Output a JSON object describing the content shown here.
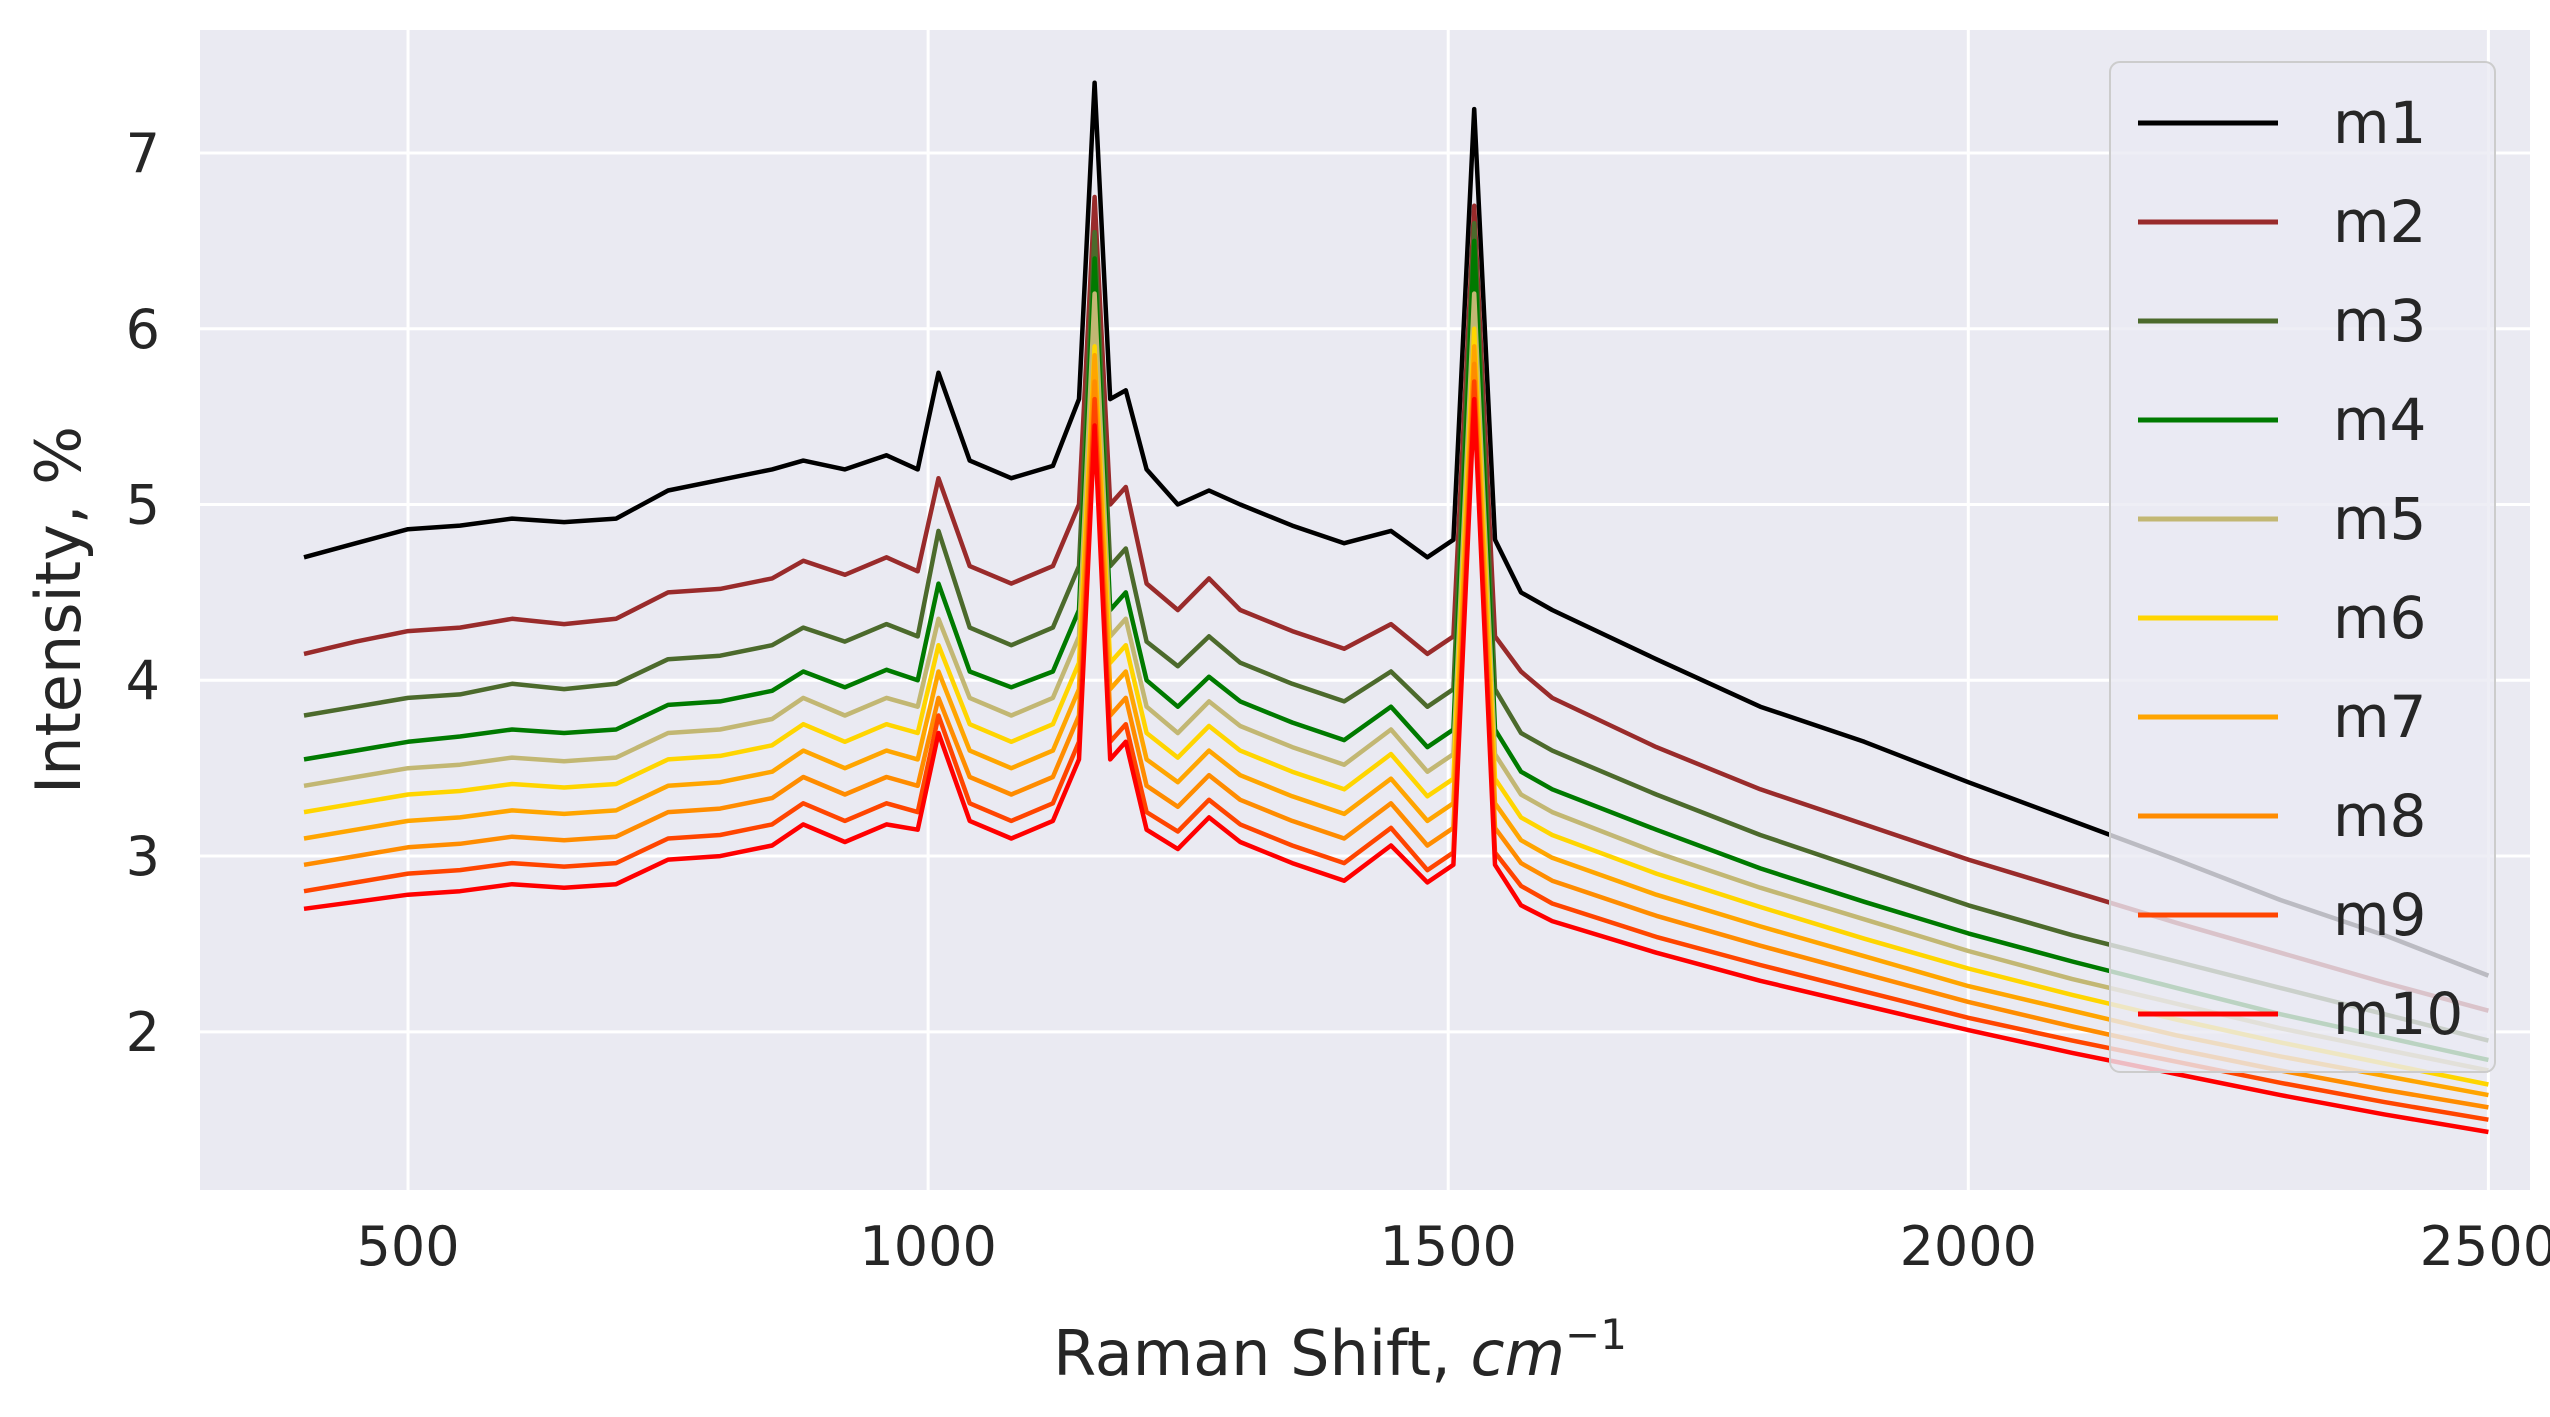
{
  "chart_data": {
    "type": "line",
    "xlabel": "Raman Shift, ",
    "xlabel_math": {
      "base": "cm",
      "exp": "−1"
    },
    "ylabel": "Intensity, %",
    "xlim": [
      300,
      2540
    ],
    "ylim": [
      1.1,
      7.7
    ],
    "x_ticks": [
      {
        "value": 500,
        "label": "500"
      },
      {
        "value": 1000,
        "label": "1000"
      },
      {
        "value": 1500,
        "label": "1500"
      },
      {
        "value": 2000,
        "label": "2000"
      },
      {
        "value": 2500,
        "label": "2500"
      }
    ],
    "y_ticks": [
      {
        "value": 2,
        "label": "2"
      },
      {
        "value": 3,
        "label": "3"
      },
      {
        "value": 4,
        "label": "4"
      },
      {
        "value": 5,
        "label": "5"
      },
      {
        "value": 6,
        "label": "6"
      },
      {
        "value": 7,
        "label": "7"
      }
    ],
    "grid": true,
    "legend_position": "top-right",
    "x": [
      400,
      450,
      500,
      550,
      600,
      650,
      700,
      750,
      800,
      850,
      880,
      920,
      960,
      990,
      1010,
      1040,
      1080,
      1120,
      1145,
      1160,
      1175,
      1190,
      1210,
      1240,
      1270,
      1300,
      1350,
      1400,
      1445,
      1480,
      1505,
      1525,
      1545,
      1570,
      1600,
      1700,
      1800,
      1900,
      2000,
      2100,
      2200,
      2300,
      2400,
      2500
    ],
    "series": [
      {
        "name": "m1",
        "color": "#000000",
        "values": [
          4.7,
          4.78,
          4.86,
          4.88,
          4.92,
          4.9,
          4.92,
          5.08,
          5.14,
          5.2,
          5.25,
          5.2,
          5.28,
          5.2,
          5.75,
          5.25,
          5.15,
          5.22,
          5.6,
          7.4,
          5.6,
          5.65,
          5.2,
          5.0,
          5.08,
          5.0,
          4.88,
          4.78,
          4.85,
          4.7,
          4.8,
          7.25,
          4.8,
          4.5,
          4.4,
          4.12,
          3.85,
          3.65,
          3.42,
          3.2,
          2.98,
          2.75,
          2.55,
          2.32
        ]
      },
      {
        "name": "m2",
        "color": "#992b2b",
        "values": [
          4.15,
          4.22,
          4.28,
          4.3,
          4.35,
          4.32,
          4.35,
          4.5,
          4.52,
          4.58,
          4.68,
          4.6,
          4.7,
          4.62,
          5.15,
          4.65,
          4.55,
          4.65,
          5.0,
          6.75,
          5.0,
          5.1,
          4.55,
          4.4,
          4.58,
          4.4,
          4.28,
          4.18,
          4.32,
          4.15,
          4.25,
          6.7,
          4.25,
          4.05,
          3.9,
          3.62,
          3.38,
          3.18,
          2.98,
          2.8,
          2.62,
          2.45,
          2.28,
          2.12
        ]
      },
      {
        "name": "m3",
        "color": "#4c6a2c",
        "values": [
          3.8,
          3.85,
          3.9,
          3.92,
          3.98,
          3.95,
          3.98,
          4.12,
          4.14,
          4.2,
          4.3,
          4.22,
          4.32,
          4.25,
          4.85,
          4.3,
          4.2,
          4.3,
          4.65,
          6.55,
          4.65,
          4.75,
          4.22,
          4.08,
          4.25,
          4.1,
          3.98,
          3.88,
          4.05,
          3.85,
          3.95,
          6.6,
          3.95,
          3.7,
          3.6,
          3.35,
          3.12,
          2.92,
          2.72,
          2.55,
          2.4,
          2.25,
          2.1,
          1.95
        ]
      },
      {
        "name": "m4",
        "color": "#007a00",
        "values": [
          3.55,
          3.6,
          3.65,
          3.68,
          3.72,
          3.7,
          3.72,
          3.86,
          3.88,
          3.94,
          4.05,
          3.96,
          4.06,
          4.0,
          4.55,
          4.05,
          3.96,
          4.05,
          4.4,
          6.4,
          4.4,
          4.5,
          4.0,
          3.85,
          4.02,
          3.88,
          3.76,
          3.66,
          3.85,
          3.62,
          3.72,
          6.5,
          3.72,
          3.48,
          3.38,
          3.15,
          2.93,
          2.74,
          2.56,
          2.4,
          2.25,
          2.1,
          1.97,
          1.84
        ]
      },
      {
        "name": "m5",
        "color": "#c2b773",
        "values": [
          3.4,
          3.45,
          3.5,
          3.52,
          3.56,
          3.54,
          3.56,
          3.7,
          3.72,
          3.78,
          3.9,
          3.8,
          3.9,
          3.85,
          4.35,
          3.9,
          3.8,
          3.9,
          4.25,
          6.2,
          4.25,
          4.35,
          3.85,
          3.7,
          3.88,
          3.74,
          3.62,
          3.52,
          3.72,
          3.48,
          3.58,
          6.2,
          3.58,
          3.35,
          3.25,
          3.02,
          2.82,
          2.64,
          2.46,
          2.3,
          2.16,
          2.02,
          1.9,
          1.78
        ]
      },
      {
        "name": "m6",
        "color": "#ffd500",
        "values": [
          3.25,
          3.3,
          3.35,
          3.37,
          3.41,
          3.39,
          3.41,
          3.55,
          3.57,
          3.63,
          3.75,
          3.65,
          3.75,
          3.7,
          4.2,
          3.75,
          3.65,
          3.75,
          4.1,
          5.9,
          4.1,
          4.2,
          3.7,
          3.56,
          3.74,
          3.6,
          3.48,
          3.38,
          3.58,
          3.34,
          3.44,
          6.0,
          3.44,
          3.22,
          3.12,
          2.9,
          2.71,
          2.53,
          2.36,
          2.21,
          2.07,
          1.94,
          1.82,
          1.7
        ]
      },
      {
        "name": "m7",
        "color": "#ffa500",
        "values": [
          3.1,
          3.15,
          3.2,
          3.22,
          3.26,
          3.24,
          3.26,
          3.4,
          3.42,
          3.48,
          3.6,
          3.5,
          3.6,
          3.55,
          4.05,
          3.6,
          3.5,
          3.6,
          3.95,
          5.85,
          3.95,
          4.05,
          3.55,
          3.42,
          3.6,
          3.46,
          3.34,
          3.24,
          3.44,
          3.2,
          3.3,
          5.9,
          3.3,
          3.09,
          2.99,
          2.78,
          2.6,
          2.43,
          2.26,
          2.12,
          1.98,
          1.86,
          1.75,
          1.64
        ]
      },
      {
        "name": "m8",
        "color": "#ff8c00",
        "values": [
          2.95,
          3.0,
          3.05,
          3.07,
          3.11,
          3.09,
          3.11,
          3.25,
          3.27,
          3.33,
          3.45,
          3.35,
          3.45,
          3.4,
          3.9,
          3.45,
          3.35,
          3.45,
          3.8,
          5.7,
          3.8,
          3.9,
          3.4,
          3.28,
          3.46,
          3.32,
          3.2,
          3.1,
          3.3,
          3.06,
          3.16,
          5.8,
          3.16,
          2.96,
          2.86,
          2.66,
          2.49,
          2.33,
          2.17,
          2.03,
          1.9,
          1.78,
          1.67,
          1.57
        ]
      },
      {
        "name": "m9",
        "color": "#ff4500",
        "values": [
          2.8,
          2.85,
          2.9,
          2.92,
          2.96,
          2.94,
          2.96,
          3.1,
          3.12,
          3.18,
          3.3,
          3.2,
          3.3,
          3.25,
          3.8,
          3.3,
          3.2,
          3.3,
          3.65,
          5.6,
          3.65,
          3.75,
          3.25,
          3.14,
          3.32,
          3.18,
          3.06,
          2.96,
          3.16,
          2.92,
          3.02,
          5.7,
          3.02,
          2.83,
          2.73,
          2.54,
          2.38,
          2.23,
          2.08,
          1.95,
          1.83,
          1.71,
          1.6,
          1.5
        ]
      },
      {
        "name": "m10",
        "color": "#ff0000",
        "values": [
          2.7,
          2.74,
          2.78,
          2.8,
          2.84,
          2.82,
          2.84,
          2.98,
          3.0,
          3.06,
          3.18,
          3.08,
          3.18,
          3.15,
          3.7,
          3.2,
          3.1,
          3.2,
          3.55,
          5.45,
          3.55,
          3.65,
          3.15,
          3.04,
          3.22,
          3.08,
          2.96,
          2.86,
          3.06,
          2.85,
          2.95,
          5.6,
          2.95,
          2.72,
          2.63,
          2.45,
          2.29,
          2.15,
          2.01,
          1.88,
          1.76,
          1.64,
          1.53,
          1.43
        ]
      }
    ]
  }
}
